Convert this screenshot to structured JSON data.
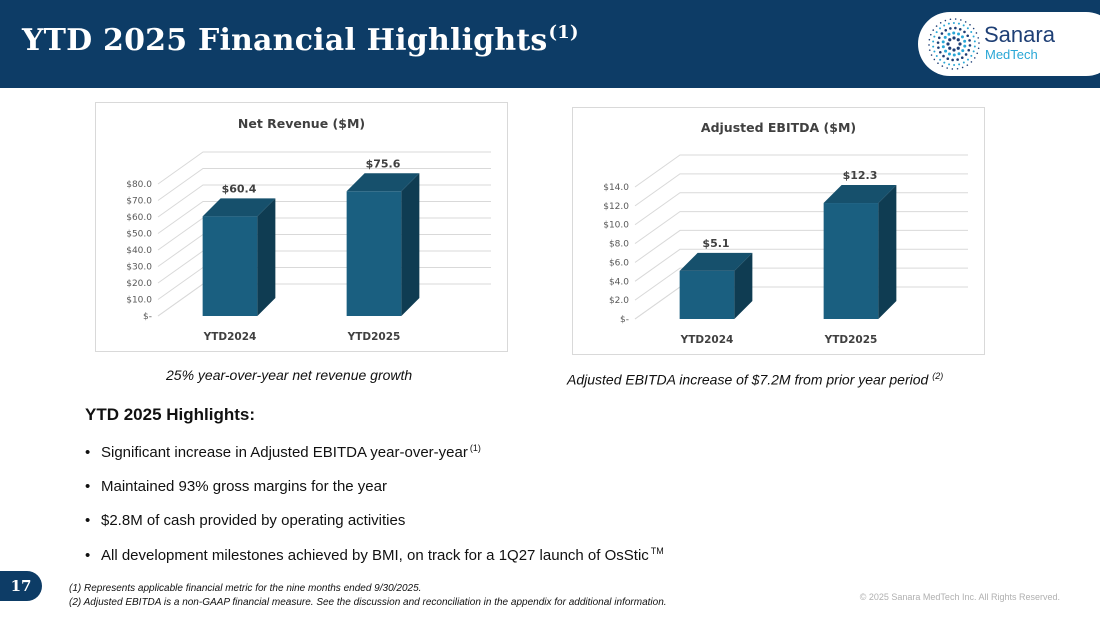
{
  "header": {
    "title": "YTD 2025 Financial Highlights",
    "title_sup": "(1)",
    "logo_word": "Sanara",
    "logo_sub": "MedTech",
    "logo_icon": "sanara-dot-burst-icon"
  },
  "colors": {
    "header_bg": "#0d3c66",
    "bar_front": "#1a5f80",
    "bar_side": "#0f3c52",
    "bar_top": "#16506c"
  },
  "chart_data": [
    {
      "type": "bar",
      "title": "Net Revenue ($M)",
      "categories": [
        "YTD2024",
        "YTD2025"
      ],
      "values": [
        60.4,
        75.6
      ],
      "value_labels": [
        "$60.4",
        "$75.6"
      ],
      "y_ticks": [
        "$-",
        "$10.0",
        "$20.0",
        "$30.0",
        "$40.0",
        "$50.0",
        "$60.0",
        "$70.0",
        "$80.0"
      ],
      "ylim": [
        0,
        80
      ],
      "xlabel": "",
      "ylabel": "",
      "grid": true
    },
    {
      "type": "bar",
      "title": "Adjusted EBITDA ($M)",
      "categories": [
        "YTD2024",
        "YTD2025"
      ],
      "values": [
        5.1,
        12.3
      ],
      "value_labels": [
        "$5.1",
        "$12.3"
      ],
      "y_ticks": [
        "$-",
        "$2.0",
        "$4.0",
        "$6.0",
        "$8.0",
        "$10.0",
        "$12.0",
        "$14.0"
      ],
      "ylim": [
        0,
        14
      ],
      "xlabel": "",
      "ylabel": "",
      "grid": true
    }
  ],
  "captions": {
    "left": "25% year-over-year net revenue growth",
    "right": "Adjusted EBITDA increase of $7.2M from prior year period",
    "right_sup": "(2)"
  },
  "highlights": {
    "heading": "YTD 2025 Highlights:",
    "items": [
      "Significant increase in Adjusted EBITDA year-over-year",
      "Maintained 93% gross margins for the year",
      "$2.8M of cash provided by operating activities",
      "All development milestones achieved by BMI, on track for a 1Q27 launch of OsStic"
    ],
    "item1_sup": "(1)",
    "item4_sup": "TM"
  },
  "footer": {
    "page_number": "17",
    "footnote1": "(1) Represents applicable financial metric for the nine months ended 9/30/2025.",
    "footnote2": "(2) Adjusted EBITDA is a non-GAAP financial measure. See the discussion and reconciliation in the appendix for additional information.",
    "copyright": "© 2025 Sanara MedTech Inc. All Rights Reserved."
  }
}
